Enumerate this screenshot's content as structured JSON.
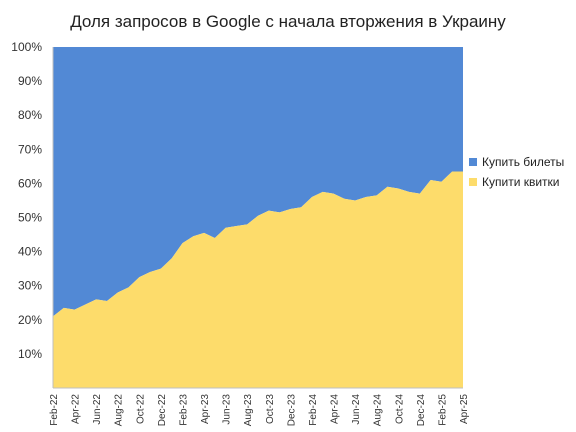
{
  "chart_data": {
    "type": "area",
    "stacked": true,
    "percent": true,
    "title": "Доля запросов в Google с начала вторжения в Украину",
    "xlabel": "",
    "ylabel": "",
    "ylim": [
      0,
      100
    ],
    "y_ticks": [
      "100%",
      "90%",
      "80%",
      "70%",
      "60%",
      "50%",
      "40%",
      "30%",
      "20%",
      "10%"
    ],
    "x_tick_labels": [
      "Feb-22",
      "Apr-22",
      "Jun-22",
      "Aug-22",
      "Oct-22",
      "Dec-22",
      "Feb-23",
      "Apr-23",
      "Jun-23",
      "Aug-23",
      "Oct-23",
      "Dec-23",
      "Feb-24",
      "Apr-24",
      "Jun-24",
      "Aug-24",
      "Oct-24",
      "Dec-24",
      "Feb-25",
      "Apr-25"
    ],
    "x": [
      "Feb-22",
      "Mar-22",
      "Apr-22",
      "May-22",
      "Jun-22",
      "Jul-22",
      "Aug-22",
      "Sep-22",
      "Oct-22",
      "Nov-22",
      "Dec-22",
      "Jan-23",
      "Feb-23",
      "Mar-23",
      "Apr-23",
      "May-23",
      "Jun-23",
      "Jul-23",
      "Aug-23",
      "Sep-23",
      "Oct-23",
      "Nov-23",
      "Dec-23",
      "Jan-24",
      "Feb-24",
      "Mar-24",
      "Apr-24",
      "May-24",
      "Jun-24",
      "Jul-24",
      "Aug-24",
      "Sep-24",
      "Oct-24",
      "Nov-24",
      "Dec-24",
      "Jan-25",
      "Feb-25",
      "Mar-25",
      "Apr-25"
    ],
    "series": [
      {
        "name": "Купить билеты",
        "color": "#5289d5",
        "values": [
          79,
          76.5,
          77,
          75.5,
          74,
          74.5,
          72,
          70.5,
          67.5,
          66,
          65,
          62,
          57.5,
          55.5,
          54.5,
          56,
          53,
          52.5,
          52,
          49.5,
          48,
          48.5,
          47.5,
          47,
          44,
          42.5,
          43,
          44.5,
          45,
          44,
          43.5,
          41,
          41.5,
          42.5,
          43,
          39,
          39.5,
          36.5,
          36.5
        ]
      },
      {
        "name": "Купити квитки",
        "color": "#fddc6b",
        "values": [
          21,
          23.5,
          23,
          24.5,
          26,
          25.5,
          28,
          29.5,
          32.5,
          34,
          35,
          38,
          42.5,
          44.5,
          45.5,
          44,
          47,
          47.5,
          48,
          50.5,
          52,
          51.5,
          52.5,
          53,
          56,
          57.5,
          57,
          55.5,
          55,
          56,
          56.5,
          59,
          58.5,
          57.5,
          57,
          61,
          60.5,
          63.5,
          63.5
        ]
      }
    ],
    "legend_position": "right",
    "grid": false
  }
}
